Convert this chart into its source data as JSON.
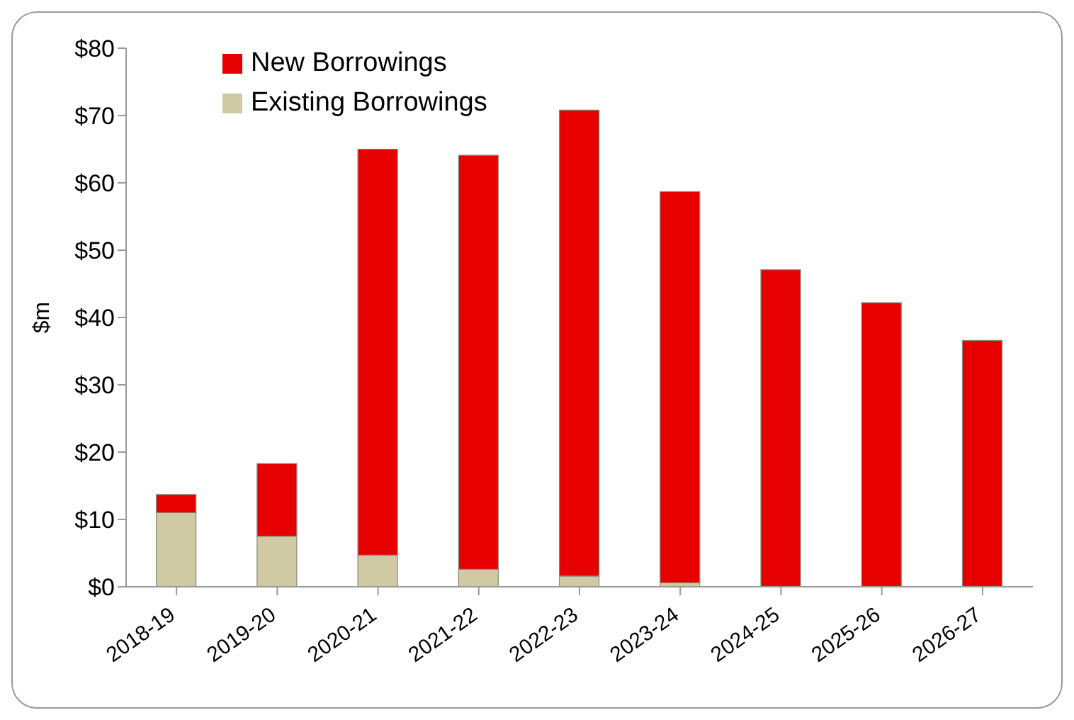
{
  "chart_data": {
    "type": "bar",
    "stacked": true,
    "ylabel": "$m",
    "categories": [
      "2018-19",
      "2019-20",
      "2020-21",
      "2021-22",
      "2022-23",
      "2023-24",
      "2024-25",
      "2025-26",
      "2026-27"
    ],
    "series": [
      {
        "name": "Existing Borrowings",
        "color": "#cfc9a4",
        "values": [
          11.0,
          7.5,
          4.7,
          2.6,
          1.6,
          0.6,
          0,
          0,
          0
        ]
      },
      {
        "name": "New Borrowings",
        "color": "#e60000",
        "values": [
          2.7,
          10.8,
          60.3,
          61.5,
          69.2,
          58.1,
          47.1,
          42.2,
          36.6
        ]
      }
    ],
    "ylim": [
      0,
      80
    ],
    "yticks": [
      {
        "value": 0,
        "label": "$0"
      },
      {
        "value": 10,
        "label": "$10"
      },
      {
        "value": 20,
        "label": "$20"
      },
      {
        "value": 30,
        "label": "$30"
      },
      {
        "value": 40,
        "label": "$40"
      },
      {
        "value": 50,
        "label": "$50"
      },
      {
        "value": 60,
        "label": "$60"
      },
      {
        "value": 70,
        "label": "$70"
      },
      {
        "value": 80,
        "label": "$80"
      }
    ],
    "grid": false,
    "legend": "top left"
  }
}
